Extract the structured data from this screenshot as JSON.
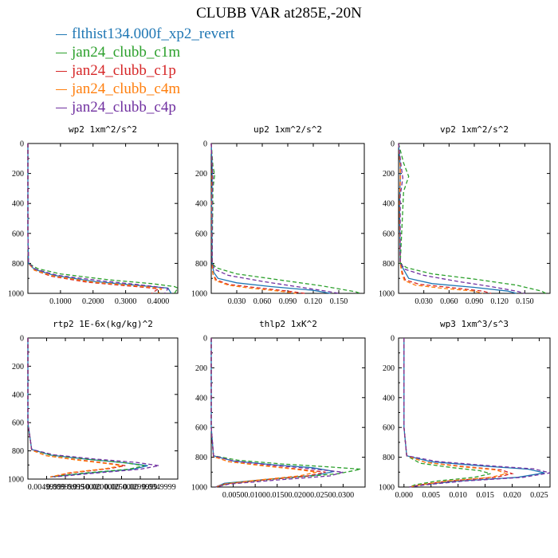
{
  "title": "CLUBB VAR at285E,-20N",
  "legend": [
    {
      "label": "flthist134.000f_xp2_revert",
      "color": "#1f77b4"
    },
    {
      "label": "jan24_clubb_c1m",
      "color": "#2ca02c"
    },
    {
      "label": "jan24_clubb_c1p",
      "color": "#d62728"
    },
    {
      "label": "jan24_clubb_c4m",
      "color": "#ff7f0e"
    },
    {
      "label": "jan24_clubb_c4p",
      "color": "#7030a0"
    }
  ],
  "chart_data": [
    {
      "type": "line",
      "title": "wp2  1xm^2/s^2",
      "xlim": [
        0,
        0.46
      ],
      "ylim": [
        0,
        1000
      ],
      "y_inverted": true,
      "xticks": [
        "0.1000",
        "0.2000",
        "0.3000",
        "0.4000"
      ],
      "xtick_values": [
        0.1,
        0.2,
        0.3,
        0.4
      ],
      "yticks": [
        "0",
        "200",
        "400",
        "600",
        "800",
        "1000"
      ],
      "ytick_values": [
        0,
        200,
        400,
        600,
        800,
        1000
      ],
      "series": [
        {
          "x": [
            0,
            0,
            0.002,
            0.02,
            0.08,
            0.2,
            0.3,
            0.38,
            0.43,
            0.44
          ],
          "y": [
            0,
            600,
            800,
            840,
            880,
            920,
            940,
            955,
            965,
            1000
          ]
        },
        {
          "x": [
            0,
            0,
            0.002,
            0.03,
            0.1,
            0.25,
            0.38,
            0.45,
            0.46,
            0.45
          ],
          "y": [
            0,
            600,
            800,
            835,
            870,
            910,
            935,
            955,
            965,
            1000
          ]
        },
        {
          "x": [
            0,
            0,
            0.002,
            0.02,
            0.07,
            0.18,
            0.28,
            0.36,
            0.4,
            0.38
          ],
          "y": [
            0,
            600,
            800,
            845,
            885,
            925,
            945,
            960,
            970,
            1000
          ]
        },
        {
          "x": [
            0,
            0,
            0.002,
            0.02,
            0.08,
            0.2,
            0.31,
            0.38,
            0.41,
            0.4
          ],
          "y": [
            0,
            600,
            800,
            845,
            885,
            925,
            945,
            960,
            970,
            1000
          ]
        },
        {
          "x": [
            0,
            0,
            0.002,
            0.025,
            0.09,
            0.22,
            0.33,
            0.4,
            0.43,
            0.42
          ],
          "y": [
            0,
            600,
            800,
            840,
            880,
            915,
            940,
            958,
            968,
            1000
          ]
        }
      ]
    },
    {
      "type": "line",
      "title": "up2  1xm^2/s^2",
      "xlim": [
        0,
        0.18
      ],
      "ylim": [
        0,
        1000
      ],
      "y_inverted": true,
      "xticks": [
        "0.030",
        "0.060",
        "0.090",
        "0.120",
        "0.150"
      ],
      "xtick_values": [
        0.03,
        0.06,
        0.09,
        0.12,
        0.15
      ],
      "yticks": [
        "0",
        "200",
        "400",
        "600",
        "800",
        "1000"
      ],
      "ytick_values": [
        0,
        200,
        400,
        600,
        800,
        1000
      ],
      "series": [
        {
          "x": [
            0,
            0.001,
            0.001,
            0.0005,
            0.001,
            0.003,
            0.008,
            0.03,
            0.07,
            0.12,
            0.14
          ],
          "y": [
            0,
            150,
            250,
            400,
            800,
            860,
            900,
            930,
            955,
            980,
            1000
          ]
        },
        {
          "x": [
            0,
            0.002,
            0.004,
            0.002,
            0.001,
            0.006,
            0.03,
            0.08,
            0.13,
            0.17,
            0.175
          ],
          "y": [
            0,
            150,
            210,
            300,
            800,
            830,
            870,
            910,
            950,
            990,
            1000
          ]
        },
        {
          "x": [
            0,
            0.001,
            0.001,
            0.0005,
            0.001,
            0.002,
            0.006,
            0.02,
            0.05,
            0.09,
            0.11
          ],
          "y": [
            0,
            150,
            250,
            400,
            800,
            870,
            910,
            940,
            960,
            985,
            1000
          ]
        },
        {
          "x": [
            0,
            0.001,
            0.001,
            0.0005,
            0.001,
            0.002,
            0.005,
            0.02,
            0.045,
            0.08,
            0.1
          ],
          "y": [
            0,
            150,
            250,
            400,
            800,
            870,
            915,
            945,
            965,
            985,
            1000
          ]
        },
        {
          "x": [
            0,
            0.001,
            0.002,
            0.001,
            0.001,
            0.004,
            0.02,
            0.06,
            0.1,
            0.135,
            0.15
          ],
          "y": [
            0,
            150,
            230,
            350,
            800,
            840,
            880,
            920,
            955,
            985,
            1000
          ]
        }
      ]
    },
    {
      "type": "line",
      "title": "vp2  1xm^2/s^2",
      "xlim": [
        0,
        0.18
      ],
      "ylim": [
        0,
        1000
      ],
      "y_inverted": true,
      "xticks": [
        "0.030",
        "0.060",
        "0.090",
        "0.120",
        "0.150"
      ],
      "xtick_values": [
        0.03,
        0.06,
        0.09,
        0.12,
        0.15
      ],
      "yticks": [
        "0",
        "200",
        "400",
        "600",
        "800",
        "1000"
      ],
      "ytick_values": [
        0,
        200,
        400,
        600,
        800,
        1000
      ],
      "series": [
        {
          "x": [
            0,
            0.002,
            0.002,
            0.001,
            0.002,
            0.008,
            0.012,
            0.04,
            0.09,
            0.13,
            0.14
          ],
          "y": [
            0,
            150,
            250,
            400,
            800,
            860,
            900,
            935,
            960,
            985,
            1000
          ]
        },
        {
          "x": [
            0,
            0.006,
            0.012,
            0.006,
            0.002,
            0.01,
            0.04,
            0.09,
            0.14,
            0.17,
            0.175
          ],
          "y": [
            0,
            130,
            220,
            320,
            800,
            830,
            870,
            905,
            945,
            985,
            1000
          ]
        },
        {
          "x": [
            0,
            0.002,
            0.002,
            0.001,
            0.002,
            0.005,
            0.008,
            0.025,
            0.06,
            0.1,
            0.11
          ],
          "y": [
            0,
            150,
            250,
            400,
            800,
            870,
            910,
            940,
            960,
            985,
            1000
          ]
        },
        {
          "x": [
            0,
            0.002,
            0.002,
            0.001,
            0.002,
            0.004,
            0.007,
            0.02,
            0.05,
            0.09,
            0.1
          ],
          "y": [
            0,
            150,
            250,
            400,
            800,
            870,
            915,
            945,
            965,
            985,
            1000
          ]
        },
        {
          "x": [
            0,
            0.003,
            0.005,
            0.002,
            0.002,
            0.008,
            0.03,
            0.07,
            0.11,
            0.14,
            0.15
          ],
          "y": [
            0,
            150,
            230,
            350,
            800,
            840,
            880,
            920,
            955,
            985,
            1000
          ]
        }
      ]
    },
    {
      "type": "line",
      "title": "rtp2  1E-6x(kg/kg)^2",
      "xlim": [
        0,
        0.04
      ],
      "ylim": [
        0,
        1000
      ],
      "y_inverted": true,
      "xticks": [
        "0.00499999",
        "0.00999999",
        "0.0150000",
        "0.0200000",
        "0.0250000",
        "0.0299999",
        "0.0349999"
      ],
      "xtick_values": [
        0.005,
        0.01,
        0.015,
        0.02,
        0.025,
        0.03,
        0.035
      ],
      "yticks": [
        "0",
        "200",
        "400",
        "600",
        "800",
        "1000"
      ],
      "ytick_values": [
        0,
        200,
        400,
        600,
        800,
        1000
      ],
      "series": [
        {
          "x": [
            0,
            0,
            0.001,
            0.006,
            0.016,
            0.026,
            0.032,
            0.028,
            0.015,
            0.006
          ],
          "y": [
            0,
            600,
            790,
            830,
            860,
            885,
            905,
            930,
            960,
            985
          ]
        },
        {
          "x": [
            0,
            0,
            0.001,
            0.006,
            0.016,
            0.026,
            0.031,
            0.027,
            0.014,
            0.006
          ],
          "y": [
            0,
            600,
            790,
            830,
            860,
            885,
            905,
            930,
            960,
            985
          ]
        },
        {
          "x": [
            0,
            0,
            0.001,
            0.005,
            0.014,
            0.022,
            0.026,
            0.022,
            0.012,
            0.006
          ],
          "y": [
            0,
            600,
            795,
            835,
            865,
            890,
            905,
            925,
            955,
            985
          ]
        },
        {
          "x": [
            0,
            0,
            0.001,
            0.005,
            0.013,
            0.021,
            0.025,
            0.021,
            0.011,
            0.006
          ],
          "y": [
            0,
            600,
            795,
            835,
            865,
            890,
            905,
            925,
            955,
            985
          ]
        },
        {
          "x": [
            0,
            0,
            0.001,
            0.007,
            0.018,
            0.029,
            0.035,
            0.03,
            0.017,
            0.007
          ],
          "y": [
            0,
            600,
            790,
            828,
            858,
            882,
            905,
            930,
            960,
            985
          ]
        }
      ]
    },
    {
      "type": "line",
      "title": "thlp2  1xK^2",
      "xlim": [
        0,
        0.035
      ],
      "ylim": [
        0,
        1000
      ],
      "y_inverted": true,
      "xticks": [
        "0.0050",
        "0.0100",
        "0.0150",
        "0.0200",
        "0.0250",
        "0.0300"
      ],
      "xtick_values": [
        0.005,
        0.01,
        0.015,
        0.02,
        0.025,
        0.03
      ],
      "yticks": [
        "0",
        "200",
        "400",
        "600",
        "800",
        "1000"
      ],
      "ytick_values": [
        0,
        200,
        400,
        600,
        800,
        1000
      ],
      "series": [
        {
          "x": [
            0,
            0,
            0.0005,
            0.005,
            0.014,
            0.023,
            0.028,
            0.024,
            0.012,
            0.003,
            0.001
          ],
          "y": [
            0,
            600,
            790,
            825,
            850,
            870,
            895,
            920,
            950,
            975,
            1000
          ]
        },
        {
          "x": [
            0,
            0,
            0.0005,
            0.006,
            0.016,
            0.027,
            0.034,
            0.029,
            0.015,
            0.004,
            0.001
          ],
          "y": [
            0,
            600,
            790,
            820,
            845,
            865,
            880,
            910,
            945,
            975,
            1000
          ]
        },
        {
          "x": [
            0,
            0,
            0.0005,
            0.004,
            0.012,
            0.02,
            0.026,
            0.022,
            0.011,
            0.003,
            0.001
          ],
          "y": [
            0,
            600,
            795,
            830,
            855,
            880,
            900,
            925,
            955,
            980,
            1000
          ]
        },
        {
          "x": [
            0,
            0,
            0.0005,
            0.004,
            0.011,
            0.019,
            0.024,
            0.02,
            0.01,
            0.003,
            0.001
          ],
          "y": [
            0,
            600,
            795,
            830,
            855,
            880,
            900,
            925,
            955,
            980,
            1000
          ]
        },
        {
          "x": [
            0,
            0,
            0.0005,
            0.005,
            0.013,
            0.022,
            0.03,
            0.027,
            0.014,
            0.004,
            0.001
          ],
          "y": [
            0,
            600,
            790,
            825,
            850,
            875,
            900,
            925,
            955,
            980,
            1000
          ]
        }
      ]
    },
    {
      "type": "line",
      "title": "wp3  1xm^3/s^3",
      "xlim": [
        -0.001,
        0.027
      ],
      "ylim": [
        0,
        1000
      ],
      "y_inverted": true,
      "xticks": [
        "0.000",
        "0.005",
        "0.010",
        "0.015",
        "0.020",
        "0.025"
      ],
      "xtick_values": [
        0,
        0.005,
        0.01,
        0.015,
        0.02,
        0.025
      ],
      "yticks": [
        "0",
        "200",
        "400",
        "600",
        "800",
        "1000"
      ],
      "ytick_values": [
        0,
        200,
        400,
        600,
        800,
        1000
      ],
      "series": [
        {
          "x": [
            0,
            0,
            0.0005,
            0.005,
            0.015,
            0.023,
            0.026,
            0.021,
            0.01,
            0.003,
            0.001
          ],
          "y": [
            0,
            600,
            790,
            830,
            860,
            880,
            905,
            935,
            960,
            985,
            1000
          ]
        },
        {
          "x": [
            0,
            0,
            0.0005,
            0.003,
            0.009,
            0.014,
            0.016,
            0.013,
            0.006,
            0.002,
            0.001
          ],
          "y": [
            0,
            600,
            790,
            840,
            870,
            890,
            910,
            935,
            960,
            985,
            1000
          ]
        },
        {
          "x": [
            0,
            0,
            0.0005,
            0.004,
            0.012,
            0.018,
            0.02,
            0.017,
            0.008,
            0.003,
            0.001
          ],
          "y": [
            0,
            600,
            790,
            835,
            865,
            885,
            910,
            935,
            960,
            985,
            1000
          ]
        },
        {
          "x": [
            0,
            0,
            0.0005,
            0.004,
            0.011,
            0.017,
            0.019,
            0.016,
            0.008,
            0.003,
            0.001
          ],
          "y": [
            0,
            600,
            790,
            835,
            865,
            885,
            910,
            935,
            960,
            985,
            1000
          ]
        },
        {
          "x": [
            0,
            0,
            0.0005,
            0.006,
            0.016,
            0.024,
            0.027,
            0.022,
            0.011,
            0.004,
            0.001
          ],
          "y": [
            0,
            600,
            790,
            828,
            858,
            878,
            905,
            935,
            960,
            985,
            1000
          ]
        }
      ]
    }
  ]
}
